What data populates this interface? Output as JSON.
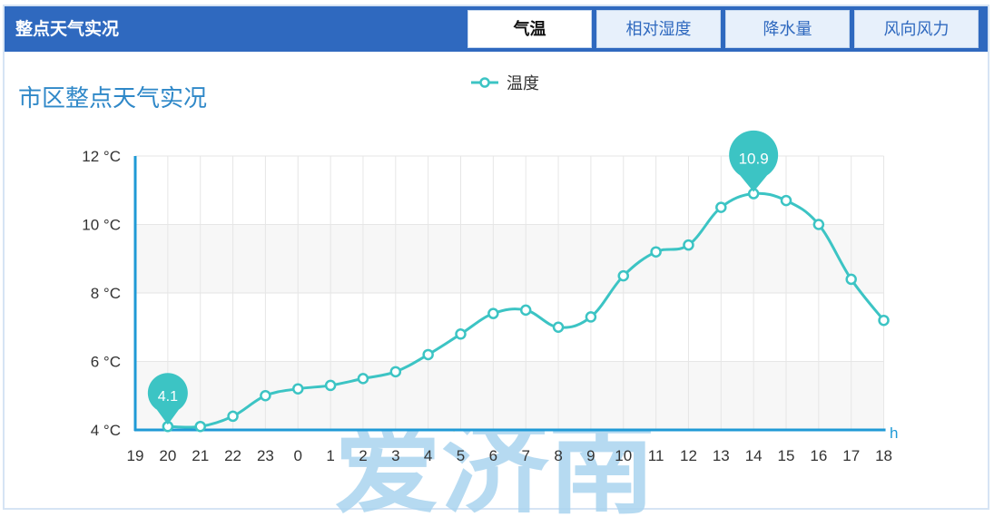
{
  "header": {
    "title": "整点天气实况",
    "tabs": [
      "气温",
      "相对湿度",
      "降水量",
      "风向风力"
    ],
    "active_tab": "气温"
  },
  "chart_data": {
    "type": "line",
    "title": "市区整点天气实况",
    "x_unit": "h",
    "y_unit": "°C",
    "ylim": [
      4,
      12
    ],
    "y_ticks": [
      "4 °C",
      "6 °C",
      "8 °C",
      "10 °C",
      "12 °C"
    ],
    "categories": [
      "19",
      "20",
      "21",
      "22",
      "23",
      "0",
      "1",
      "2",
      "3",
      "4",
      "5",
      "6",
      "7",
      "8",
      "9",
      "10",
      "11",
      "12",
      "13",
      "14",
      "15",
      "16",
      "17",
      "18"
    ],
    "series": [
      {
        "name": "温度",
        "color": "#3cc4c4",
        "values": [
          null,
          4.1,
          4.1,
          4.4,
          5.0,
          5.2,
          5.3,
          5.5,
          5.7,
          6.2,
          6.8,
          7.4,
          7.5,
          7.0,
          7.3,
          8.5,
          9.2,
          9.4,
          10.5,
          10.9,
          10.7,
          10.0,
          8.4,
          7.2
        ]
      }
    ],
    "annotations": [
      {
        "label": "4.1",
        "category": "20",
        "value": 4.1,
        "kind": "min"
      },
      {
        "label": "10.9",
        "category": "14",
        "value": 10.9,
        "kind": "max"
      }
    ],
    "grid": true,
    "legend_position": "top-center"
  },
  "watermark": "爱济南"
}
